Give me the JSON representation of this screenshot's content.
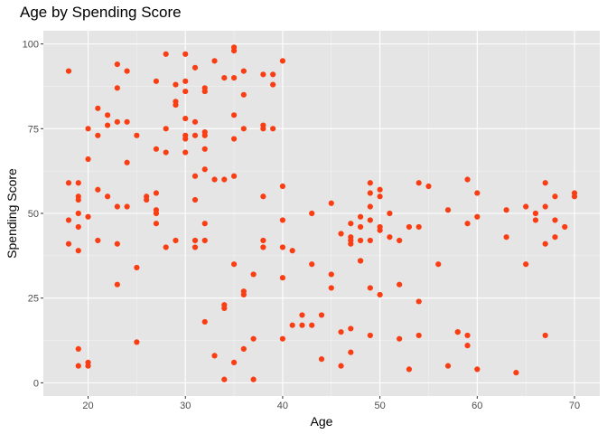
{
  "chart_data": {
    "type": "scatter",
    "title": "Age by Spending Score",
    "xlabel": "Age",
    "ylabel": "Spending Score",
    "xlim": [
      15.4,
      72.6
    ],
    "ylim": [
      -3.9,
      103.9
    ],
    "x_ticks": [
      20,
      30,
      40,
      50,
      60,
      70
    ],
    "y_ticks": [
      0,
      25,
      50,
      75,
      100
    ],
    "grid": true,
    "legend": "none",
    "point_color": "#F93E13",
    "panel_background": "#E5E5E5",
    "series": [
      {
        "points": [
          [
            18,
            92
          ],
          [
            18,
            59
          ],
          [
            18,
            48
          ],
          [
            18,
            41
          ],
          [
            19,
            59
          ],
          [
            19,
            55
          ],
          [
            19,
            54
          ],
          [
            19,
            50
          ],
          [
            19,
            46
          ],
          [
            19,
            39
          ],
          [
            19,
            10
          ],
          [
            19,
            5
          ],
          [
            20,
            75
          ],
          [
            20,
            66
          ],
          [
            20,
            49
          ],
          [
            20,
            6
          ],
          [
            20,
            5
          ],
          [
            21,
            81
          ],
          [
            21,
            73
          ],
          [
            21,
            57
          ],
          [
            21,
            42
          ],
          [
            22,
            79
          ],
          [
            22,
            76
          ],
          [
            22,
            55
          ],
          [
            23,
            94
          ],
          [
            23,
            87
          ],
          [
            23,
            77
          ],
          [
            23,
            52
          ],
          [
            23,
            41
          ],
          [
            23,
            29
          ],
          [
            24,
            92
          ],
          [
            24,
            77
          ],
          [
            24,
            65
          ],
          [
            24,
            52
          ],
          [
            25,
            73
          ],
          [
            25,
            34
          ],
          [
            25,
            12
          ],
          [
            26,
            55
          ],
          [
            26,
            54
          ],
          [
            27,
            89
          ],
          [
            27,
            69
          ],
          [
            27,
            56
          ],
          [
            27,
            51
          ],
          [
            27,
            50
          ],
          [
            27,
            47
          ],
          [
            28,
            97
          ],
          [
            28,
            75
          ],
          [
            28,
            68
          ],
          [
            28,
            40
          ],
          [
            29,
            88
          ],
          [
            29,
            83
          ],
          [
            29,
            82
          ],
          [
            29,
            42
          ],
          [
            30,
            97
          ],
          [
            30,
            89
          ],
          [
            30,
            86
          ],
          [
            30,
            78
          ],
          [
            30,
            73
          ],
          [
            30,
            72
          ],
          [
            30,
            68
          ],
          [
            31,
            93
          ],
          [
            31,
            77
          ],
          [
            31,
            73
          ],
          [
            31,
            61
          ],
          [
            31,
            54
          ],
          [
            31,
            42
          ],
          [
            31,
            40
          ],
          [
            32,
            87
          ],
          [
            32,
            86
          ],
          [
            32,
            74
          ],
          [
            32,
            73
          ],
          [
            32,
            69
          ],
          [
            32,
            63
          ],
          [
            32,
            47
          ],
          [
            32,
            42
          ],
          [
            32,
            18
          ],
          [
            33,
            95
          ],
          [
            33,
            60
          ],
          [
            33,
            8
          ],
          [
            34,
            90
          ],
          [
            34,
            60
          ],
          [
            34,
            23
          ],
          [
            34,
            22
          ],
          [
            34,
            1
          ],
          [
            35,
            99
          ],
          [
            35,
            98
          ],
          [
            35,
            90
          ],
          [
            35,
            79
          ],
          [
            35,
            72
          ],
          [
            35,
            61
          ],
          [
            35,
            35
          ],
          [
            35,
            6
          ],
          [
            36,
            92
          ],
          [
            36,
            85
          ],
          [
            36,
            75
          ],
          [
            36,
            27
          ],
          [
            36,
            26
          ],
          [
            36,
            10
          ],
          [
            37,
            32
          ],
          [
            37,
            13
          ],
          [
            37,
            1
          ],
          [
            38,
            91
          ],
          [
            38,
            76
          ],
          [
            38,
            75
          ],
          [
            38,
            55
          ],
          [
            38,
            42
          ],
          [
            38,
            40
          ],
          [
            39,
            91
          ],
          [
            39,
            88
          ],
          [
            39,
            75
          ],
          [
            40,
            95
          ],
          [
            40,
            58
          ],
          [
            40,
            48
          ],
          [
            40,
            40
          ],
          [
            40,
            31
          ],
          [
            40,
            13
          ],
          [
            41,
            39
          ],
          [
            41,
            17
          ],
          [
            42,
            20
          ],
          [
            42,
            17
          ],
          [
            43,
            50
          ],
          [
            43,
            35
          ],
          [
            43,
            17
          ],
          [
            44,
            20
          ],
          [
            44,
            7
          ],
          [
            45,
            53
          ],
          [
            45,
            32
          ],
          [
            45,
            28
          ],
          [
            46,
            44
          ],
          [
            46,
            15
          ],
          [
            46,
            5
          ],
          [
            47,
            47
          ],
          [
            47,
            43
          ],
          [
            47,
            42
          ],
          [
            47,
            41
          ],
          [
            47,
            16
          ],
          [
            47,
            9
          ],
          [
            48,
            49
          ],
          [
            48,
            46
          ],
          [
            48,
            42
          ],
          [
            48,
            36
          ],
          [
            48,
            36
          ],
          [
            49,
            59
          ],
          [
            49,
            56
          ],
          [
            49,
            52
          ],
          [
            49,
            48
          ],
          [
            49,
            42
          ],
          [
            49,
            28
          ],
          [
            49,
            14
          ],
          [
            50,
            57
          ],
          [
            50,
            55
          ],
          [
            50,
            46
          ],
          [
            50,
            45
          ],
          [
            50,
            26
          ],
          [
            51,
            50
          ],
          [
            51,
            43
          ],
          [
            52,
            42
          ],
          [
            52,
            29
          ],
          [
            52,
            13
          ],
          [
            53,
            46
          ],
          [
            53,
            4
          ],
          [
            54,
            59
          ],
          [
            54,
            46
          ],
          [
            54,
            24
          ],
          [
            54,
            14
          ],
          [
            55,
            58
          ],
          [
            56,
            35
          ],
          [
            57,
            51
          ],
          [
            57,
            5
          ],
          [
            58,
            15
          ],
          [
            58,
            15
          ],
          [
            59,
            60
          ],
          [
            59,
            47
          ],
          [
            59,
            14
          ],
          [
            59,
            11
          ],
          [
            60,
            56
          ],
          [
            60,
            49
          ],
          [
            60,
            4
          ],
          [
            63,
            51
          ],
          [
            63,
            43
          ],
          [
            64,
            3
          ],
          [
            65,
            52
          ],
          [
            65,
            35
          ],
          [
            66,
            50
          ],
          [
            66,
            48
          ],
          [
            67,
            59
          ],
          [
            67,
            52
          ],
          [
            67,
            41
          ],
          [
            67,
            14
          ],
          [
            68,
            55
          ],
          [
            68,
            48
          ],
          [
            68,
            43
          ],
          [
            69,
            46
          ],
          [
            70,
            56
          ],
          [
            70,
            55
          ]
        ]
      }
    ]
  }
}
